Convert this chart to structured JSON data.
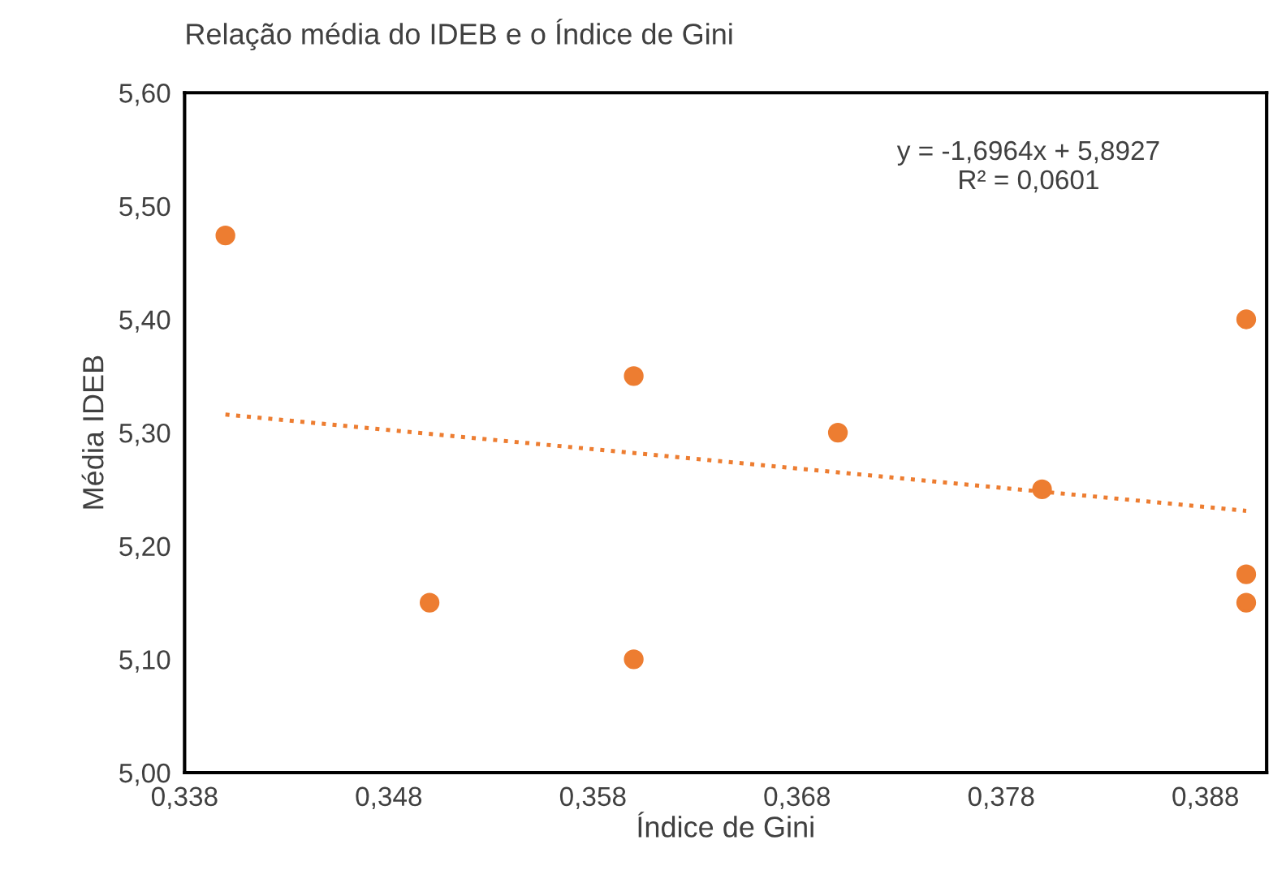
{
  "chart_data": {
    "type": "scatter",
    "title": "Relação média do IDEB e o Índice de Gini",
    "xlabel": "Índice de Gini",
    "ylabel": "Média IDEB",
    "annotations": [
      "y = -1,6964x + 5,8927\nR² = 0,0601"
    ],
    "series": [
      {
        "color": "#ed7d31",
        "marker": "circle",
        "x": [
          0.34,
          0.35,
          0.36,
          0.36,
          0.37,
          0.38,
          0.39,
          0.39,
          0.39
        ],
        "values": [
          5.474,
          5.15,
          5.1,
          5.35,
          5.3,
          5.25,
          5.4,
          5.175,
          5.15
        ]
      },
      {
        "type": "line",
        "color": "#ed7d31",
        "line_style": "dotted",
        "marker": "none",
        "x": [
          0.34,
          0.39
        ],
        "values": [
          5.316,
          5.231
        ]
      }
    ],
    "xlim": [
      0.338,
      0.391
    ],
    "ylim": [
      5.0,
      5.6
    ],
    "xticks": [
      {
        "value": 0.338,
        "label": "0,338"
      },
      {
        "value": 0.348,
        "label": "0,348"
      },
      {
        "value": 0.358,
        "label": "0,358"
      },
      {
        "value": 0.368,
        "label": "0,368"
      },
      {
        "value": 0.378,
        "label": "0,378"
      },
      {
        "value": 0.388,
        "label": "0,388"
      }
    ],
    "yticks": [
      {
        "value": 5.0,
        "label": "5,00"
      },
      {
        "value": 5.1,
        "label": "5,10"
      },
      {
        "value": 5.2,
        "label": "5,20"
      },
      {
        "value": 5.3,
        "label": "5,30"
      },
      {
        "value": 5.4,
        "label": "5,40"
      },
      {
        "value": 5.5,
        "label": "5,50"
      },
      {
        "value": 5.6,
        "label": "5,60"
      }
    ],
    "grid": false,
    "legend": false
  }
}
